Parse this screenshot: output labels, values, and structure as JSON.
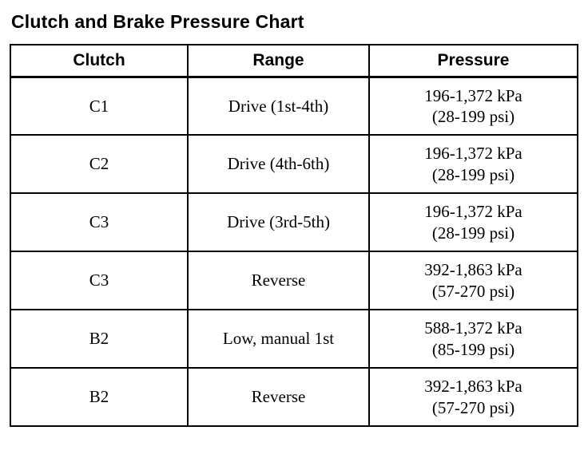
{
  "page": {
    "title": "Clutch and Brake Pressure Chart"
  },
  "table": {
    "headers": [
      "Clutch",
      "Range",
      "Pressure"
    ],
    "rows": [
      {
        "clutch": "C1",
        "range": "Drive (1st-4th)",
        "pressure_kpa": "196-1,372 kPa",
        "pressure_psi": "(28-199 psi)"
      },
      {
        "clutch": "C2",
        "range": "Drive (4th-6th)",
        "pressure_kpa": "196-1,372 kPa",
        "pressure_psi": "(28-199 psi)"
      },
      {
        "clutch": "C3",
        "range": "Drive (3rd-5th)",
        "pressure_kpa": "196-1,372 kPa",
        "pressure_psi": "(28-199 psi)"
      },
      {
        "clutch": "C3",
        "range": "Reverse",
        "pressure_kpa": "392-1,863 kPa",
        "pressure_psi": "(57-270 psi)"
      },
      {
        "clutch": "B2",
        "range": "Low, manual 1st",
        "pressure_kpa": "588-1,372 kPa",
        "pressure_psi": "(85-199 psi)"
      },
      {
        "clutch": "B2",
        "range": "Reverse",
        "pressure_kpa": "392-1,863 kPa",
        "pressure_psi": "(57-270 psi)"
      }
    ]
  }
}
